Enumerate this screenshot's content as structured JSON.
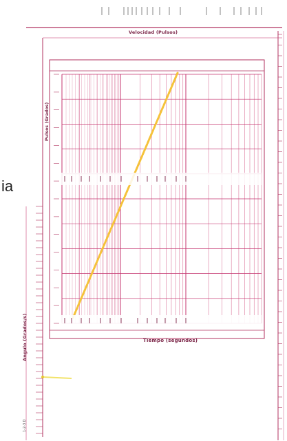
{
  "side_fragment": "ia",
  "top_axis_label": "Velocidad (Pulsos)",
  "bottom_axis_label": "Tiempo (segundos)",
  "inner_axis_label": "Pulsos (Grados)",
  "left_axis_label": "Angulo (Grados/s)",
  "left_margin_note": "1-2-3 D",
  "colors": {
    "grid": "#c4346f",
    "grid_light": "#e08aaa",
    "frame": "#b0325f",
    "trace": "#f5c23a",
    "trace_marker": "#f2e36a",
    "label": "#7a2346"
  }
}
